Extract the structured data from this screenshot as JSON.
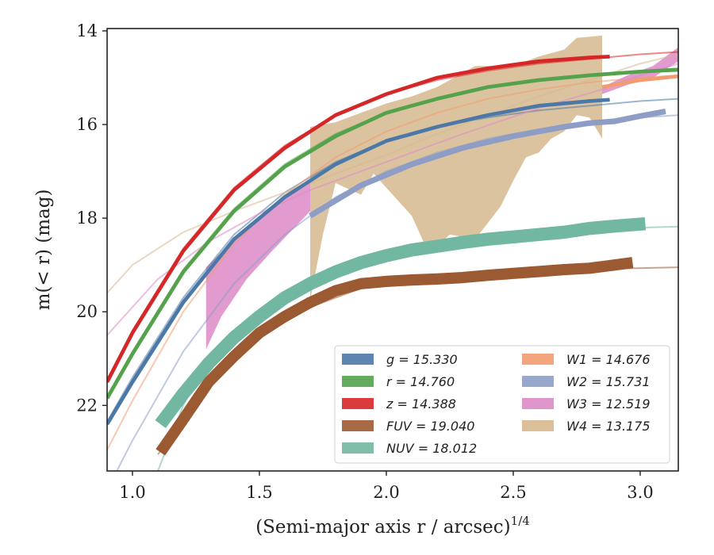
{
  "chart_data": {
    "type": "line",
    "xlabel": "(Semi-major axis r / arcsec)",
    "xlabel_exponent": "1/4",
    "ylabel": "m(< r) (mag)",
    "xlim": [
      0.9,
      3.15
    ],
    "ylim": [
      23.4,
      13.95
    ],
    "y_inverted": true,
    "x_ticks": [
      1.0,
      1.5,
      2.0,
      2.5,
      3.0
    ],
    "x_tick_labels": [
      "1.0",
      "1.5",
      "2.0",
      "2.5",
      "3.0"
    ],
    "y_ticks": [
      14,
      16,
      18,
      20,
      22
    ],
    "y_tick_labels": [
      "14",
      "16",
      "18",
      "20",
      "22"
    ],
    "grid": false,
    "legend_position": "bottom-right",
    "series": [
      {
        "name": "g = 15.330",
        "color": "#4c78a8",
        "model": [
          [
            0.9,
            22.35
          ],
          [
            1.0,
            21.4
          ],
          [
            1.2,
            19.7
          ],
          [
            1.4,
            18.35
          ],
          [
            1.6,
            17.45
          ],
          [
            1.8,
            16.8
          ],
          [
            2.0,
            16.35
          ],
          [
            2.2,
            16.05
          ],
          [
            2.4,
            15.85
          ],
          [
            2.6,
            15.7
          ],
          [
            2.8,
            15.6
          ],
          [
            3.0,
            15.5
          ],
          [
            3.15,
            15.45
          ]
        ],
        "data": [
          [
            0.9,
            22.4
          ],
          [
            1.0,
            21.5
          ],
          [
            1.2,
            19.8
          ],
          [
            1.4,
            18.45
          ],
          [
            1.6,
            17.55
          ],
          [
            1.8,
            16.85
          ],
          [
            2.0,
            16.35
          ],
          [
            2.2,
            16.05
          ],
          [
            2.4,
            15.8
          ],
          [
            2.6,
            15.6
          ],
          [
            2.8,
            15.5
          ],
          [
            2.88,
            15.47
          ]
        ],
        "band": 0.04
      },
      {
        "name": "r = 14.760",
        "color": "#54a24b",
        "model": [
          [
            0.9,
            21.8
          ],
          [
            1.0,
            20.85
          ],
          [
            1.2,
            19.1
          ],
          [
            1.4,
            17.8
          ],
          [
            1.6,
            16.85
          ],
          [
            1.8,
            16.2
          ],
          [
            2.0,
            15.75
          ],
          [
            2.2,
            15.45
          ],
          [
            2.4,
            15.2
          ],
          [
            2.6,
            15.05
          ],
          [
            2.8,
            14.95
          ],
          [
            3.0,
            14.85
          ],
          [
            3.15,
            14.8
          ]
        ],
        "data": [
          [
            0.9,
            21.85
          ],
          [
            1.0,
            20.9
          ],
          [
            1.2,
            19.15
          ],
          [
            1.4,
            17.85
          ],
          [
            1.6,
            16.9
          ],
          [
            1.8,
            16.25
          ],
          [
            2.0,
            15.75
          ],
          [
            2.2,
            15.45
          ],
          [
            2.4,
            15.2
          ],
          [
            2.6,
            15.05
          ],
          [
            2.8,
            14.95
          ],
          [
            3.0,
            14.87
          ],
          [
            3.15,
            14.83
          ]
        ],
        "band": 0.04
      },
      {
        "name": "z = 14.388",
        "color": "#d62728",
        "model": [
          [
            0.9,
            21.45
          ],
          [
            1.0,
            20.4
          ],
          [
            1.2,
            18.65
          ],
          [
            1.4,
            17.35
          ],
          [
            1.6,
            16.45
          ],
          [
            1.8,
            15.8
          ],
          [
            2.0,
            15.35
          ],
          [
            2.2,
            15.05
          ],
          [
            2.4,
            14.85
          ],
          [
            2.6,
            14.7
          ],
          [
            2.8,
            14.6
          ],
          [
            3.0,
            14.5
          ],
          [
            3.15,
            14.45
          ]
        ],
        "data": [
          [
            0.9,
            21.5
          ],
          [
            1.0,
            20.45
          ],
          [
            1.2,
            18.7
          ],
          [
            1.4,
            17.4
          ],
          [
            1.6,
            16.5
          ],
          [
            1.8,
            15.8
          ],
          [
            2.0,
            15.35
          ],
          [
            2.2,
            15.0
          ],
          [
            2.4,
            14.8
          ],
          [
            2.6,
            14.65
          ],
          [
            2.8,
            14.57
          ],
          [
            2.88,
            14.55
          ]
        ],
        "band": 0.04
      },
      {
        "name": "FUV = 19.040",
        "color": "#9c5a33",
        "model": [
          [
            1.1,
            23.05
          ],
          [
            1.3,
            21.6
          ],
          [
            1.5,
            20.55
          ],
          [
            1.7,
            19.9
          ],
          [
            1.9,
            19.5
          ],
          [
            2.1,
            19.35
          ],
          [
            2.3,
            19.25
          ],
          [
            2.5,
            19.18
          ],
          [
            2.7,
            19.12
          ],
          [
            2.9,
            19.08
          ],
          [
            3.15,
            19.05
          ]
        ],
        "data": [
          [
            1.11,
            23.0
          ],
          [
            1.2,
            22.3
          ],
          [
            1.3,
            21.5
          ],
          [
            1.4,
            20.95
          ],
          [
            1.5,
            20.45
          ],
          [
            1.6,
            20.1
          ],
          [
            1.7,
            19.8
          ],
          [
            1.8,
            19.55
          ],
          [
            1.9,
            19.4
          ],
          [
            2.0,
            19.35
          ],
          [
            2.1,
            19.32
          ],
          [
            2.2,
            19.3
          ],
          [
            2.3,
            19.27
          ],
          [
            2.4,
            19.22
          ],
          [
            2.5,
            19.18
          ],
          [
            2.6,
            19.14
          ],
          [
            2.7,
            19.1
          ],
          [
            2.8,
            19.07
          ],
          [
            2.9,
            19.0
          ],
          [
            2.97,
            18.95
          ]
        ],
        "band": 0.12
      },
      {
        "name": "NUV = 18.012",
        "color": "#72b7a1",
        "model": [
          [
            1.1,
            23.4
          ],
          [
            1.2,
            22.0
          ],
          [
            1.3,
            21.0
          ],
          [
            1.5,
            20.05
          ],
          [
            1.7,
            19.35
          ],
          [
            1.9,
            18.9
          ],
          [
            2.1,
            18.65
          ],
          [
            2.3,
            18.5
          ],
          [
            2.5,
            18.4
          ],
          [
            2.7,
            18.3
          ],
          [
            2.9,
            18.22
          ],
          [
            3.15,
            18.18
          ]
        ],
        "data": [
          [
            1.11,
            22.4
          ],
          [
            1.2,
            21.75
          ],
          [
            1.3,
            21.1
          ],
          [
            1.4,
            20.55
          ],
          [
            1.5,
            20.1
          ],
          [
            1.6,
            19.7
          ],
          [
            1.7,
            19.4
          ],
          [
            1.8,
            19.15
          ],
          [
            1.9,
            18.95
          ],
          [
            2.0,
            18.8
          ],
          [
            2.1,
            18.68
          ],
          [
            2.2,
            18.6
          ],
          [
            2.3,
            18.52
          ],
          [
            2.4,
            18.45
          ],
          [
            2.5,
            18.4
          ],
          [
            2.6,
            18.35
          ],
          [
            2.7,
            18.3
          ],
          [
            2.8,
            18.22
          ],
          [
            2.9,
            18.17
          ],
          [
            3.02,
            18.12
          ]
        ],
        "band": 0.14
      },
      {
        "name": "W1 = 14.676",
        "color": "#f29b6f",
        "model": [
          [
            0.9,
            22.95
          ],
          [
            1.0,
            21.9
          ],
          [
            1.2,
            20.0
          ],
          [
            1.4,
            18.55
          ],
          [
            1.6,
            17.5
          ],
          [
            1.8,
            16.7
          ],
          [
            2.0,
            16.15
          ],
          [
            2.2,
            15.75
          ],
          [
            2.4,
            15.45
          ],
          [
            2.6,
            15.25
          ],
          [
            2.8,
            15.1
          ],
          [
            3.0,
            15.0
          ],
          [
            3.15,
            14.95
          ]
        ],
        "data": [
          [
            2.85,
            15.2
          ],
          [
            3.0,
            15.05
          ],
          [
            3.15,
            14.97
          ]
        ],
        "band": 0.04
      },
      {
        "name": "W2 = 15.731",
        "color": "#8d9dc6",
        "model": [
          [
            0.9,
            23.8
          ],
          [
            1.0,
            22.75
          ],
          [
            1.2,
            20.85
          ],
          [
            1.4,
            19.4
          ],
          [
            1.6,
            18.35
          ],
          [
            1.8,
            17.55
          ],
          [
            2.0,
            17.0
          ],
          [
            2.2,
            16.6
          ],
          [
            2.4,
            16.3
          ],
          [
            2.6,
            16.1
          ],
          [
            2.8,
            15.95
          ],
          [
            3.0,
            15.85
          ],
          [
            3.15,
            15.8
          ]
        ],
        "data": [
          [
            1.7,
            17.95
          ],
          [
            1.9,
            17.3
          ],
          [
            2.1,
            16.85
          ],
          [
            2.3,
            16.5
          ],
          [
            2.5,
            16.25
          ],
          [
            2.7,
            16.05
          ],
          [
            2.8,
            15.97
          ],
          [
            2.9,
            15.93
          ],
          [
            3.0,
            15.82
          ],
          [
            3.1,
            15.72
          ]
        ],
        "band": 0.06
      },
      {
        "name": "W3 = 12.519",
        "color": "#dc8ac6",
        "model": [
          [
            0.9,
            20.5
          ],
          [
            1.1,
            19.3
          ],
          [
            1.3,
            18.5
          ],
          [
            1.5,
            17.9
          ],
          [
            1.7,
            17.4
          ],
          [
            2.0,
            16.8
          ],
          [
            2.3,
            16.2
          ],
          [
            2.6,
            15.65
          ],
          [
            2.85,
            15.25
          ],
          [
            3.0,
            14.95
          ],
          [
            3.15,
            14.7
          ]
        ],
        "band_poly": [
          [
            1.29,
            19.05
          ],
          [
            1.45,
            18.2
          ],
          [
            1.6,
            17.6
          ],
          [
            1.7,
            17.2
          ],
          [
            1.7,
            17.85
          ],
          [
            1.55,
            18.7
          ],
          [
            1.45,
            19.3
          ],
          [
            1.35,
            20.1
          ],
          [
            1.29,
            20.8
          ]
        ],
        "band_poly_2": [
          [
            2.85,
            15.2
          ],
          [
            2.95,
            14.95
          ],
          [
            3.05,
            14.75
          ],
          [
            3.15,
            14.35
          ],
          [
            3.15,
            14.65
          ],
          [
            3.05,
            15.0
          ],
          [
            2.95,
            15.15
          ],
          [
            2.85,
            15.35
          ]
        ]
      },
      {
        "name": "W4 = 13.175",
        "color": "#d6b88e",
        "model": [
          [
            0.9,
            19.6
          ],
          [
            1.0,
            19.0
          ],
          [
            1.2,
            18.3
          ],
          [
            1.4,
            17.85
          ],
          [
            1.6,
            17.45
          ],
          [
            1.8,
            17.05
          ],
          [
            2.0,
            16.65
          ],
          [
            2.2,
            16.2
          ],
          [
            2.4,
            15.8
          ],
          [
            2.6,
            15.4
          ],
          [
            2.8,
            15.05
          ],
          [
            3.0,
            14.7
          ],
          [
            3.15,
            14.5
          ]
        ],
        "band_poly": [
          [
            1.7,
            16.05
          ],
          [
            1.8,
            15.95
          ],
          [
            1.9,
            15.75
          ],
          [
            2.0,
            15.55
          ],
          [
            2.1,
            15.4
          ],
          [
            2.2,
            15.2
          ],
          [
            2.35,
            14.75
          ],
          [
            2.5,
            14.75
          ],
          [
            2.6,
            14.55
          ],
          [
            2.7,
            14.4
          ],
          [
            2.75,
            14.15
          ],
          [
            2.85,
            14.1
          ],
          [
            2.85,
            16.3
          ],
          [
            2.8,
            15.85
          ],
          [
            2.75,
            15.8
          ],
          [
            2.7,
            16.15
          ],
          [
            2.65,
            16.3
          ],
          [
            2.6,
            16.6
          ],
          [
            2.55,
            16.7
          ],
          [
            2.5,
            17.2
          ],
          [
            2.45,
            17.75
          ],
          [
            2.35,
            18.45
          ],
          [
            2.25,
            18.35
          ],
          [
            2.2,
            18.6
          ],
          [
            2.15,
            18.55
          ],
          [
            2.1,
            17.95
          ],
          [
            2.0,
            17.35
          ],
          [
            1.95,
            17.05
          ],
          [
            1.9,
            17.5
          ],
          [
            1.8,
            17.25
          ],
          [
            1.75,
            18.35
          ],
          [
            1.7,
            19.75
          ]
        ]
      }
    ]
  },
  "legend": {
    "col1": [
      {
        "label": "g = 15.330",
        "color": "#4c78a8"
      },
      {
        "label": "r = 14.760",
        "color": "#54a24b"
      },
      {
        "label": "z = 14.388",
        "color": "#d62728"
      },
      {
        "label": "FUV = 19.040",
        "color": "#9c5a33"
      },
      {
        "label": "NUV = 18.012",
        "color": "#72b7a1"
      }
    ],
    "col2": [
      {
        "label": "W1 = 14.676",
        "color": "#f29b6f"
      },
      {
        "label": "W2 = 15.731",
        "color": "#8d9dc6"
      },
      {
        "label": "W3 = 12.519",
        "color": "#dc8ac6"
      },
      {
        "label": "W4 = 13.175",
        "color": "#d6b88e"
      }
    ]
  }
}
